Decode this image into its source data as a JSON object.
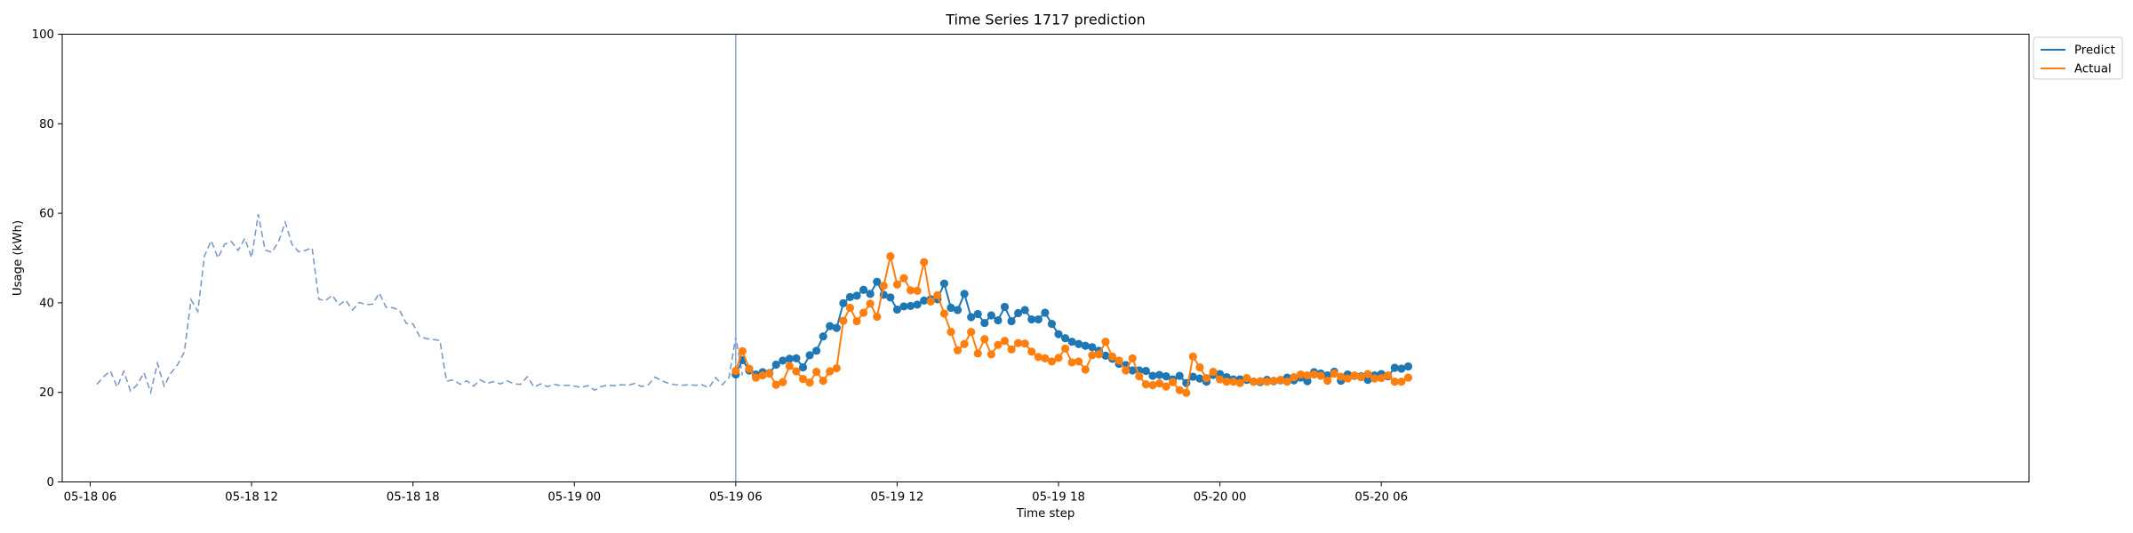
{
  "chart_data": {
    "type": "line",
    "title": "Time Series 1717 prediction",
    "xlabel": "Time step",
    "ylabel": "Usage (kWh)",
    "ylim": [
      0,
      100
    ],
    "yticks": [
      0,
      20,
      40,
      60,
      80,
      100
    ],
    "xlim": [
      -1.04,
      72.08
    ],
    "x_ticks": [
      {
        "value": 0,
        "label": "05-18 06"
      },
      {
        "value": 6,
        "label": "05-18 12"
      },
      {
        "value": 12,
        "label": "05-18 18"
      },
      {
        "value": 18,
        "label": "05-19 00"
      },
      {
        "value": 24,
        "label": "05-19 06"
      },
      {
        "value": 30,
        "label": "05-19 12"
      },
      {
        "value": 36,
        "label": "05-19 18"
      },
      {
        "value": 42,
        "label": "05-20 00"
      },
      {
        "value": 48,
        "label": "05-20 06"
      }
    ],
    "vline_x": 24.0,
    "legend": {
      "placement": "upper-right-outside",
      "entries": [
        "Predict",
        "Actual"
      ]
    },
    "colors": {
      "predict": "#1f77b4",
      "actual": "#ff7f0e",
      "history": "#7d9ac4",
      "vline": "#8ea5d6"
    },
    "history": {
      "name": "history",
      "style": "dashed",
      "x_start": 0.25,
      "x_step": 0.25,
      "values": [
        21.8,
        23.5,
        24.8,
        21.2,
        24.7,
        20.3,
        21.7,
        24.4,
        20.0,
        26.5,
        21.4,
        24.3,
        26.2,
        29.0,
        40.7,
        38.1,
        50.5,
        53.9,
        50.0,
        53.1,
        53.7,
        51.7,
        54.4,
        50.1,
        59.8,
        51.8,
        51.3,
        53.6,
        58.0,
        53.1,
        51.4,
        51.7,
        52.3,
        40.8,
        40.5,
        41.7,
        39.5,
        40.6,
        38.4,
        40.1,
        39.6,
        39.7,
        42.2,
        39.0,
        38.9,
        38.4,
        35.4,
        35.3,
        32.5,
        32.0,
        31.8,
        31.6,
        22.5,
        22.8,
        21.8,
        22.6,
        21.4,
        22.8,
        22.0,
        22.4,
        21.9,
        22.6,
        21.9,
        21.8,
        23.5,
        21.2,
        21.9,
        21.3,
        21.8,
        21.5,
        21.6,
        21.4,
        21.1,
        21.5,
        20.5,
        21.3,
        21.6,
        21.5,
        21.7,
        21.6,
        22.0,
        21.3,
        21.7,
        23.4,
        22.6,
        22.0,
        21.7,
        21.6,
        21.7,
        21.6,
        21.7,
        21.0,
        23.3,
        21.7,
        23.3,
        32.4,
        23.8
      ]
    },
    "series": [
      {
        "name": "Predict",
        "x_start": 24.0,
        "x_step": 0.25,
        "values": [
          24.0,
          27.2,
          24.9,
          24.0,
          24.5,
          24.3,
          26.2,
          27.1,
          27.5,
          27.6,
          25.6,
          28.3,
          29.3,
          32.5,
          34.8,
          34.4,
          39.9,
          41.3,
          41.6,
          42.9,
          42.0,
          44.7,
          41.8,
          41.2,
          38.5,
          39.2,
          39.3,
          39.6,
          40.5,
          40.8,
          40.8,
          44.3,
          38.9,
          38.4,
          42.0,
          36.8,
          37.5,
          35.5,
          37.2,
          36.1,
          39.1,
          35.9,
          37.7,
          38.4,
          36.3,
          36.3,
          37.8,
          35.3,
          33.0,
          32.1,
          31.3,
          30.8,
          30.4,
          30.1,
          29.3,
          28.2,
          27.5,
          26.4,
          26.1,
          24.9,
          24.9,
          24.8,
          23.7,
          23.9,
          23.6,
          22.9,
          23.7,
          22.1,
          23.5,
          23.1,
          22.4,
          23.9,
          24.1,
          23.4,
          22.9,
          22.9,
          22.8,
          22.4,
          22.3,
          22.8,
          22.5,
          22.7,
          23.3,
          22.7,
          23.3,
          22.5,
          24.5,
          24.2,
          23.8,
          24.6,
          22.6,
          24.0,
          23.7,
          23.6,
          22.8,
          23.8,
          24.1,
          23.6,
          25.5,
          25.3,
          25.8
        ]
      },
      {
        "name": "Actual",
        "x_start": 24.0,
        "x_step": 0.25,
        "values": [
          24.8,
          29.2,
          25.3,
          23.3,
          23.8,
          24.2,
          21.7,
          22.3,
          25.9,
          24.7,
          23.0,
          22.2,
          24.6,
          22.6,
          24.7,
          25.4,
          36.0,
          38.9,
          35.9,
          37.8,
          39.8,
          36.9,
          43.8,
          50.4,
          44.1,
          45.5,
          42.8,
          42.7,
          49.1,
          40.3,
          41.7,
          37.6,
          33.5,
          29.4,
          30.8,
          33.5,
          28.7,
          31.9,
          28.5,
          30.6,
          31.5,
          29.6,
          31.0,
          30.9,
          29.1,
          27.9,
          27.6,
          26.9,
          27.7,
          29.8,
          26.7,
          26.9,
          25.1,
          28.3,
          28.5,
          31.3,
          28.0,
          27.1,
          24.9,
          27.6,
          23.6,
          21.8,
          21.6,
          22.0,
          21.3,
          22.3,
          20.5,
          19.9,
          28.0,
          25.6,
          23.2,
          24.6,
          22.9,
          22.4,
          22.4,
          22.1,
          23.2,
          22.4,
          22.5,
          22.4,
          22.6,
          22.8,
          22.4,
          23.4,
          24.0,
          23.8,
          24.0,
          23.7,
          22.6,
          24.2,
          23.5,
          23.1,
          23.8,
          23.4,
          24.1,
          23.1,
          23.2,
          23.8,
          22.4,
          22.4,
          23.3
        ]
      }
    ]
  }
}
